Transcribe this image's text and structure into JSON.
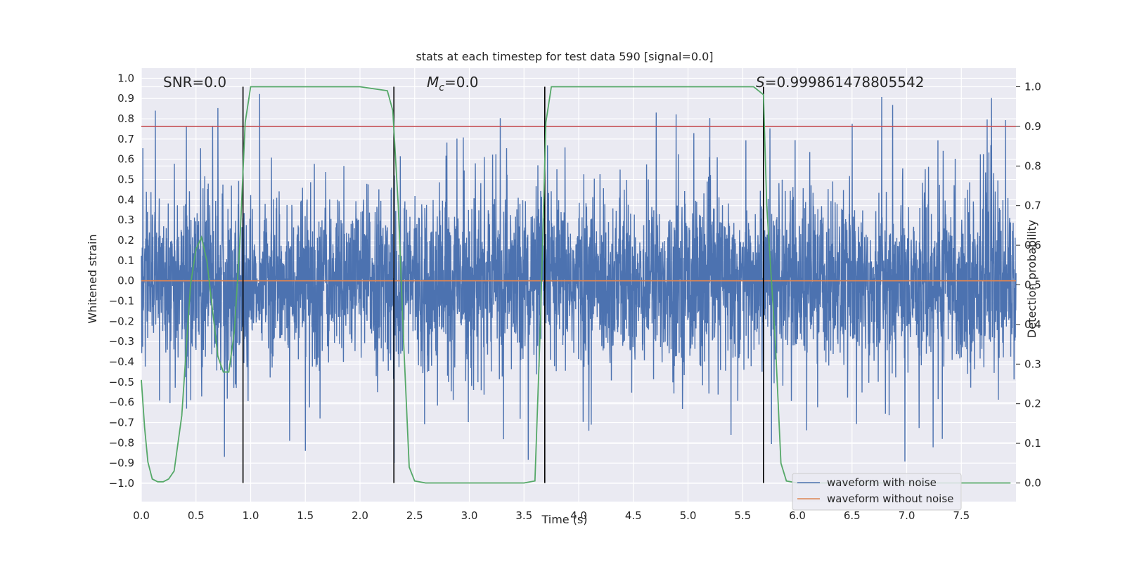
{
  "chart_data": {
    "type": "line",
    "title": "stats at each timestep for test data 590 [signal=0.0]",
    "xlabel": "Time (s)",
    "ylabel": "Whitened strain",
    "y2label": "Detection probability",
    "xlim": [
      0.0,
      8.0
    ],
    "ylim": [
      -1.09,
      1.05
    ],
    "y2lim": [
      -0.047,
      1.047
    ],
    "x_ticks": [
      "0.0",
      "0.5",
      "1.0",
      "1.5",
      "2.0",
      "2.5",
      "3.0",
      "3.5",
      "4.0",
      "4.5",
      "5.0",
      "5.5",
      "6.0",
      "6.5",
      "7.0",
      "7.5"
    ],
    "y_ticks": [
      "1.0",
      "0.9",
      "0.8",
      "0.7",
      "0.6",
      "0.5",
      "0.4",
      "0.3",
      "0.2",
      "0.1",
      "0.0",
      "−0.1",
      "−0.2",
      "−0.3",
      "−0.4",
      "−0.5",
      "−0.6",
      "−0.7",
      "−0.8",
      "−0.9",
      "−1.0"
    ],
    "y2_ticks": [
      "1.0",
      "0.9",
      "0.8",
      "0.7",
      "0.6",
      "0.5",
      "0.4",
      "0.3",
      "0.2",
      "0.1",
      "0.0"
    ],
    "grid": true,
    "annotations": {
      "snr": "SNR=0.0",
      "mc_symbol": "M",
      "mc_sub": "c",
      "mc_value": "=0.0",
      "s_symbol": "S",
      "s_value": "=0.999861478805542"
    },
    "threshold": 0.9,
    "vertical_lines": [
      0.93,
      2.31,
      3.69,
      5.69
    ],
    "series": [
      {
        "name": "waveform with noise",
        "color": "#4c72b0",
        "description_values": "noise, amplitude approx 0.4 typical, peaks up to 0.93 and down to -1.0"
      },
      {
        "name": "waveform without noise",
        "color": "#dd8452",
        "values_constant": 0.0
      },
      {
        "color": "#55a868",
        "axis": "right",
        "x": [
          0.0,
          0.03,
          0.06,
          0.1,
          0.15,
          0.2,
          0.25,
          0.3,
          0.37,
          0.45,
          0.5,
          0.55,
          0.6,
          0.65,
          0.7,
          0.75,
          0.8,
          0.85,
          0.9,
          0.95,
          1.0,
          1.05,
          1.2,
          1.5,
          2.0,
          2.25,
          2.3,
          2.35,
          2.4,
          2.45,
          2.5,
          2.6,
          3.0,
          3.5,
          3.6,
          3.65,
          3.7,
          3.75,
          3.8,
          4.0,
          5.0,
          5.6,
          5.69,
          5.72,
          5.8,
          5.85,
          5.9,
          6.0,
          7.0,
          7.95
        ],
        "y": [
          0.26,
          0.14,
          0.053,
          0.01,
          0.003,
          0.003,
          0.01,
          0.03,
          0.17,
          0.5,
          0.59,
          0.62,
          0.56,
          0.44,
          0.32,
          0.28,
          0.28,
          0.38,
          0.6,
          0.91,
          1.0,
          1.0,
          1.0,
          1.0,
          1.0,
          0.99,
          0.94,
          0.7,
          0.35,
          0.04,
          0.005,
          0.0,
          0.0,
          0.0,
          0.005,
          0.4,
          0.91,
          1.0,
          1.0,
          1.0,
          1.0,
          1.0,
          0.98,
          0.7,
          0.35,
          0.05,
          0.005,
          0.0,
          0.0,
          0.0
        ]
      }
    ],
    "legend": {
      "placement": "lower-right",
      "entries": [
        "waveform with noise",
        "waveform without noise"
      ]
    },
    "colors": {
      "background": "#eaeaf2",
      "grid": "#ffffff",
      "threshold": "#c44e52",
      "vline": "#000000"
    }
  }
}
